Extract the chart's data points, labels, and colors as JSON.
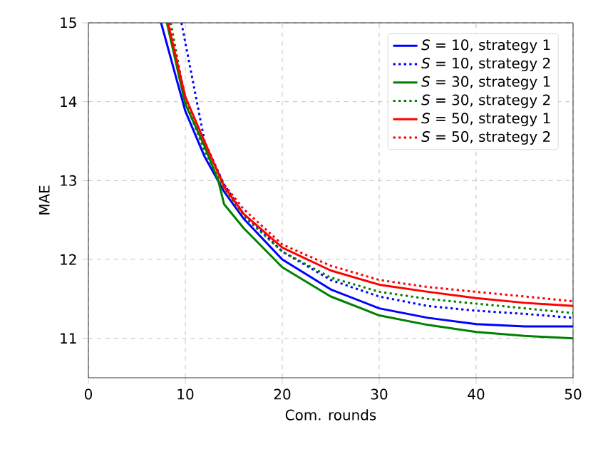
{
  "chart_data": {
    "type": "line",
    "xlabel": "Com. rounds",
    "ylabel": "MAE",
    "xlim": [
      0,
      50
    ],
    "ylim": [
      10.5,
      15
    ],
    "xticks": [
      0,
      10,
      20,
      30,
      40,
      50
    ],
    "yticks": [
      11,
      12,
      13,
      14,
      15
    ],
    "grid": true,
    "legend": "top right",
    "marker": "none",
    "series": [
      {
        "name": "*S* = 10, strategy 1",
        "color": "#0000ff",
        "line_style": "solid",
        "x": [
          7.5,
          10,
          12,
          14,
          16,
          20,
          25,
          30,
          35,
          40,
          45,
          50
        ],
        "values": [
          15,
          13.88,
          13.3,
          12.86,
          12.52,
          12.0,
          11.62,
          11.38,
          11.26,
          11.18,
          11.15,
          11.15
        ]
      },
      {
        "name": "*S* = 10, strategy 2",
        "color": "#0000ff",
        "line_style": "dotted",
        "x": [
          9.6,
          10,
          12,
          14,
          16,
          20,
          25,
          30,
          35,
          40,
          45,
          50
        ],
        "values": [
          15,
          14.75,
          13.49,
          12.95,
          12.58,
          12.1,
          11.74,
          11.53,
          11.41,
          11.35,
          11.31,
          11.26
        ]
      },
      {
        "name": "*S* = 30, strategy 1",
        "color": "#008000",
        "line_style": "solid",
        "x": [
          8.1,
          10,
          12,
          13.4,
          14,
          16,
          20,
          25,
          30,
          35,
          40,
          45,
          50
        ],
        "values": [
          15,
          13.97,
          13.43,
          13.0,
          12.7,
          12.4,
          11.9,
          11.53,
          11.29,
          11.17,
          11.08,
          11.03,
          11.0
        ]
      },
      {
        "name": "*S* = 30, strategy 2",
        "color": "#008000",
        "line_style": "dotted",
        "x": [
          8.5,
          10,
          12,
          14,
          16,
          20,
          25,
          30,
          35,
          40,
          45,
          50
        ],
        "values": [
          15,
          14.0,
          13.37,
          12.89,
          12.55,
          12.1,
          11.77,
          11.59,
          11.5,
          11.44,
          11.38,
          11.32
        ]
      },
      {
        "name": "*S* = 50, strategy 1",
        "color": "#ff0000",
        "line_style": "solid",
        "x": [
          8.2,
          10,
          12,
          14,
          16,
          20,
          25,
          30,
          35,
          40,
          45,
          50
        ],
        "values": [
          15,
          14.06,
          13.49,
          12.92,
          12.58,
          12.15,
          11.86,
          11.68,
          11.59,
          11.51,
          11.45,
          11.41
        ]
      },
      {
        "name": "*S* = 50, strategy 2",
        "color": "#ff0000",
        "line_style": "dotted",
        "x": [
          8.3,
          10,
          12,
          14,
          16,
          20,
          25,
          30,
          35,
          40,
          45,
          50
        ],
        "values": [
          15,
          14.06,
          13.46,
          12.95,
          12.64,
          12.19,
          11.92,
          11.74,
          11.65,
          11.59,
          11.53,
          11.47
        ]
      }
    ]
  }
}
